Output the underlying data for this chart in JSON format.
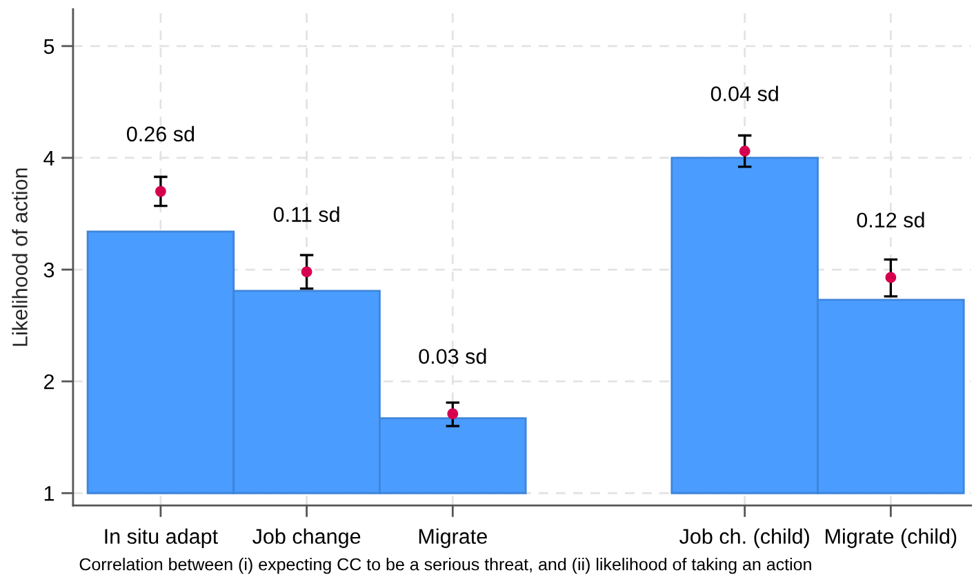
{
  "chart_data": {
    "type": "bar",
    "ylabel": "Likelihood of action",
    "categories": [
      "In situ adapt",
      "Job change",
      "Migrate",
      null,
      "Job ch. (child)",
      "Migrate (child)"
    ],
    "series": [
      {
        "color": "#4a9cff",
        "base": [
          1,
          1,
          1,
          null,
          1,
          1
        ],
        "values": [
          2.34,
          1.81,
          0.67,
          null,
          3.0,
          1.73
        ]
      },
      {
        "type": "scatter",
        "color": "#d6004f",
        "marker": "circle",
        "x": [
          "In situ adapt",
          "Job change",
          "Migrate",
          "Job ch. (child)",
          "Migrate (child)"
        ],
        "values": [
          3.7,
          2.98,
          1.71,
          4.06,
          2.93
        ],
        "errors": [
          [
            3.57,
            3.83
          ],
          [
            2.83,
            3.13
          ],
          [
            1.6,
            1.81
          ],
          [
            3.92,
            4.2
          ],
          [
            2.76,
            3.09
          ]
        ]
      }
    ],
    "ylim": [
      0.89,
      5.33
    ],
    "yticks": [
      1,
      2,
      3,
      4,
      5
    ],
    "grid": true,
    "annotations": [
      {
        "text": "0.26 sd",
        "x": "In situ adapt",
        "y": 3.7
      },
      {
        "text": "0.11 sd",
        "x": "Job change",
        "y": 2.98
      },
      {
        "text": "0.03 sd",
        "x": "Migrate",
        "y": 1.71
      },
      {
        "text": "0.04 sd",
        "x": "Job ch. (child)",
        "y": 4.06
      },
      {
        "text": "0.12 sd",
        "x": "Migrate (child)",
        "y": 2.93
      },
      "Correlation between (i) expecting CC to be a serious threat, and (ii) likelihood of taking an action"
    ]
  }
}
